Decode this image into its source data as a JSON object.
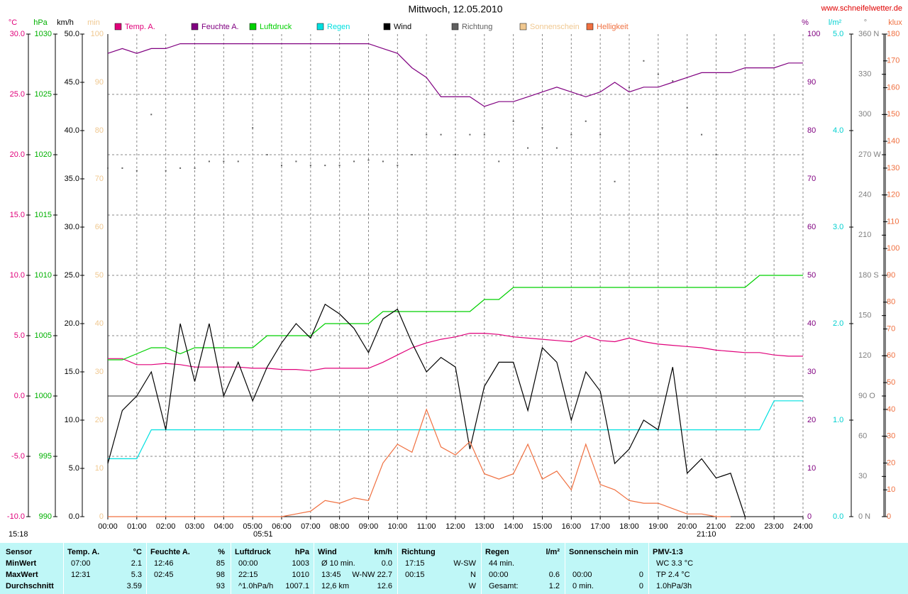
{
  "chart_data": {
    "type": "line",
    "title": "Mittwoch, 12.05.2010",
    "source": "www.schneifelwetter.de",
    "x": [
      0,
      0.5,
      1,
      1.5,
      2,
      2.5,
      3,
      3.5,
      4,
      4.5,
      5,
      5.5,
      6,
      6.5,
      7,
      7.5,
      8,
      8.5,
      9,
      9.5,
      10,
      10.5,
      11,
      11.5,
      12,
      12.5,
      13,
      13.5,
      14,
      14.5,
      15,
      15.5,
      16,
      16.5,
      17,
      17.5,
      18,
      18.5,
      19,
      19.5,
      20,
      20.5,
      21,
      21.5,
      22,
      22.5,
      23,
      23.5,
      24
    ],
    "xlim": [
      0,
      24
    ],
    "xticks": [
      {
        "value": 0,
        "label": "00:00"
      },
      {
        "value": 1,
        "label": "01:00"
      },
      {
        "value": 2,
        "label": "02:00"
      },
      {
        "value": 3,
        "label": "03:00"
      },
      {
        "value": 4,
        "label": "04:00"
      },
      {
        "value": 5,
        "label": "05:00"
      },
      {
        "value": 6,
        "label": "06:00"
      },
      {
        "value": 7,
        "label": "07:00"
      },
      {
        "value": 8,
        "label": "08:00"
      },
      {
        "value": 9,
        "label": "09:00"
      },
      {
        "value": 10,
        "label": "10:00"
      },
      {
        "value": 11,
        "label": "11:00"
      },
      {
        "value": 12,
        "label": "12:00"
      },
      {
        "value": 13,
        "label": "13:00"
      },
      {
        "value": 14,
        "label": "14:00"
      },
      {
        "value": 15,
        "label": "15:00"
      },
      {
        "value": 16,
        "label": "16:00"
      },
      {
        "value": 17,
        "label": "17:00"
      },
      {
        "value": 18,
        "label": "18:00"
      },
      {
        "value": 19,
        "label": "19:00"
      },
      {
        "value": 20,
        "label": "20:00"
      },
      {
        "value": 21,
        "label": "21:00"
      },
      {
        "value": 22,
        "label": "22:00"
      },
      {
        "value": 23,
        "label": "23:00"
      },
      {
        "value": 24,
        "label": "24:00"
      }
    ],
    "grid": true,
    "axes": {
      "temp": {
        "unit": "°C",
        "color": "#e0007a",
        "lim": [
          -10,
          30
        ],
        "ticks": [
          {
            "value": -10,
            "label": "-10.0"
          },
          {
            "value": -5,
            "label": "-5.0"
          },
          {
            "value": 0,
            "label": "0.0"
          },
          {
            "value": 5,
            "label": "5.0"
          },
          {
            "value": 10,
            "label": "10.0"
          },
          {
            "value": 15,
            "label": "15.0"
          },
          {
            "value": 20,
            "label": "20.0"
          },
          {
            "value": 25,
            "label": "25.0"
          },
          {
            "value": 30,
            "label": "30.0"
          }
        ]
      },
      "hpa": {
        "unit": "hPa",
        "color": "#00b000",
        "lim": [
          990,
          1030
        ],
        "ticks": [
          990,
          995,
          1000,
          1005,
          1010,
          1015,
          1020,
          1025,
          1030
        ]
      },
      "wind": {
        "unit": "km/h",
        "color": "#000000",
        "lim": [
          0,
          50
        ],
        "ticks": [
          {
            "value": 0,
            "label": "0.0"
          },
          {
            "value": 5,
            "label": "5.0"
          },
          {
            "value": 10,
            "label": "10.0"
          },
          {
            "value": 15,
            "label": "15.0"
          },
          {
            "value": 20,
            "label": "20.0"
          },
          {
            "value": 25,
            "label": "25.0"
          },
          {
            "value": 30,
            "label": "30.0"
          },
          {
            "value": 35,
            "label": "35.0"
          },
          {
            "value": 40,
            "label": "40.0"
          },
          {
            "value": 45,
            "label": "45.0"
          },
          {
            "value": 50,
            "label": "50.0"
          }
        ]
      },
      "min": {
        "unit": "min",
        "color": "#f0c890",
        "lim": [
          0,
          100
        ],
        "ticks": [
          0,
          10,
          20,
          30,
          40,
          50,
          60,
          70,
          80,
          90,
          100
        ]
      },
      "pct": {
        "unit": "%",
        "color": "#800080",
        "lim": [
          0,
          100
        ],
        "ticks": [
          0,
          10,
          20,
          30,
          40,
          50,
          60,
          70,
          80,
          90,
          100
        ]
      },
      "rain": {
        "unit": "l/m²",
        "color": "#00d0d0",
        "lim": [
          0,
          5
        ],
        "ticks": [
          {
            "value": 0,
            "label": "0.0"
          },
          {
            "value": 1,
            "label": "1.0"
          },
          {
            "value": 2,
            "label": "2.0"
          },
          {
            "value": 3,
            "label": "3.0"
          },
          {
            "value": 4,
            "label": "4.0"
          },
          {
            "value": 5,
            "label": "5.0"
          }
        ]
      },
      "dir": {
        "unit": "°",
        "color": "#808080",
        "lim": [
          0,
          360
        ],
        "ticks": [
          {
            "value": 0,
            "label": "0 N"
          },
          30,
          60,
          {
            "value": 90,
            "label": "90 O"
          },
          120,
          150,
          {
            "value": 180,
            "label": "180 S"
          },
          210,
          240,
          {
            "value": 270,
            "label": "270 W"
          },
          300,
          330,
          {
            "value": 360,
            "label": "360 N"
          }
        ]
      },
      "klux": {
        "unit": "klux",
        "color": "#f07040",
        "lim": [
          0,
          180
        ],
        "ticks": [
          0,
          10,
          20,
          30,
          40,
          50,
          60,
          70,
          80,
          90,
          100,
          110,
          120,
          130,
          140,
          150,
          160,
          170,
          180
        ]
      }
    },
    "series": [
      {
        "name": "Temp. A.",
        "color": "#e0007a",
        "axis": "temp",
        "values": [
          3.1,
          3.1,
          2.6,
          2.6,
          2.7,
          2.6,
          2.4,
          2.4,
          2.4,
          2.4,
          2.3,
          2.3,
          2.2,
          2.2,
          2.1,
          2.3,
          2.3,
          2.3,
          2.3,
          2.8,
          3.4,
          4.0,
          4.4,
          4.7,
          4.9,
          5.2,
          5.2,
          5.1,
          4.9,
          4.8,
          4.7,
          4.6,
          4.5,
          5.0,
          4.6,
          4.5,
          4.8,
          4.5,
          4.3,
          4.2,
          4.1,
          4.0,
          3.8,
          3.7,
          3.6,
          3.6,
          3.4,
          3.3,
          3.3
        ]
      },
      {
        "name": "Feuchte A.",
        "color": "#800080",
        "axis": "pct",
        "values": [
          96,
          97,
          96,
          97,
          97,
          98,
          98,
          98,
          98,
          98,
          98,
          98,
          98,
          98,
          98,
          98,
          98,
          98,
          98,
          97,
          96,
          93,
          91,
          87,
          87,
          87,
          85,
          86,
          86,
          87,
          88,
          89,
          88,
          87,
          88,
          90,
          88,
          89,
          89,
          90,
          91,
          92,
          92,
          92,
          93,
          93,
          93,
          94,
          94
        ]
      },
      {
        "name": "Luftdruck",
        "color": "#00d000",
        "axis": "hpa",
        "values": [
          1003,
          1003,
          1003.5,
          1004,
          1004,
          1003.5,
          1004,
          1004,
          1004,
          1004,
          1004,
          1005,
          1005,
          1005,
          1005,
          1006,
          1006,
          1006,
          1006,
          1007,
          1007,
          1007,
          1007,
          1007,
          1007,
          1007,
          1008,
          1008,
          1009,
          1009,
          1009,
          1009,
          1009,
          1009,
          1009,
          1009,
          1009,
          1009,
          1009,
          1009,
          1009,
          1009,
          1009,
          1009,
          1009,
          1010,
          1010,
          1010,
          1010
        ]
      },
      {
        "name": "Regen",
        "color": "#00e0e0",
        "axis": "rain",
        "values": [
          0.6,
          0.6,
          0.6,
          0.9,
          0.9,
          0.9,
          0.9,
          0.9,
          0.9,
          0.9,
          0.9,
          0.9,
          0.9,
          0.9,
          0.9,
          0.9,
          0.9,
          0.9,
          0.9,
          0.9,
          0.9,
          0.9,
          0.9,
          0.9,
          0.9,
          0.9,
          0.9,
          0.9,
          0.9,
          0.9,
          0.9,
          0.9,
          0.9,
          0.9,
          0.9,
          0.9,
          0.9,
          0.9,
          0.9,
          0.9,
          0.9,
          0.9,
          0.9,
          0.9,
          0.9,
          0.9,
          1.2,
          1.2,
          1.2
        ]
      },
      {
        "name": "Wind",
        "color": "#000000",
        "axis": "wind",
        "values": [
          5.5,
          11,
          12.5,
          15,
          9,
          20,
          14,
          20,
          12.5,
          16,
          12,
          15.5,
          18,
          20,
          18.5,
          22,
          21,
          19.5,
          17,
          20.5,
          21.5,
          18,
          15,
          16.5,
          15.5,
          7,
          13.5,
          16,
          16,
          11,
          17.5,
          16,
          10,
          15,
          13,
          5.5,
          7,
          10,
          9,
          15.5,
          4.5,
          6,
          4,
          4.5,
          0,
          null,
          null,
          null,
          null
        ]
      },
      {
        "name": "Richtung",
        "color": "#606060",
        "axis": "dir",
        "style": "dots",
        "values": [
          260,
          260,
          258,
          300,
          258,
          260,
          260,
          265,
          265,
          265,
          290,
          270,
          262,
          265,
          262,
          262,
          262,
          265,
          266,
          265,
          262,
          270,
          285,
          285,
          270,
          285,
          285,
          265,
          295,
          275,
          290,
          275,
          285,
          295,
          285,
          250,
          320,
          340,
          330,
          325,
          305,
          285,
          270,
          null,
          null,
          null,
          null,
          null,
          null
        ]
      },
      {
        "name": "Sonnenschein",
        "color": "#f0c890",
        "axis": "min"
      },
      {
        "name": "Helligkeit",
        "color": "#f07040",
        "axis": "klux",
        "values": [
          0,
          0,
          0,
          0,
          0,
          0,
          0,
          0,
          0,
          0,
          0,
          0,
          0,
          1,
          2,
          6,
          5,
          7,
          6,
          20,
          27,
          24,
          40,
          26,
          23,
          28,
          16,
          14,
          16,
          27,
          14,
          17,
          10,
          27,
          12,
          10,
          6,
          5,
          5,
          3,
          1,
          1,
          0,
          0,
          null,
          null,
          null,
          null,
          null
        ]
      }
    ],
    "annotations": [
      "15:18",
      "05:51",
      "21:10"
    ]
  },
  "table": {
    "label_header": "Sensor",
    "labels": [
      "MinWert",
      "MaxWert",
      "Durchschnitt"
    ],
    "columns": [
      {
        "title": "Temp. A.",
        "unit": "°C",
        "rows": [
          {
            "l": "07:00",
            "r": "2.1"
          },
          {
            "l": "12:31",
            "r": "5.3"
          },
          {
            "r": "3.59"
          }
        ]
      },
      {
        "title": "Feuchte A.",
        "unit": "%",
        "rows": [
          {
            "l": "12:46",
            "r": "85"
          },
          {
            "l": "02:45",
            "r": "98"
          },
          {
            "r": "93"
          }
        ]
      },
      {
        "title": "Luftdruck",
        "unit": "hPa",
        "rows": [
          {
            "l": "00:00",
            "r": "1003"
          },
          {
            "l": "22:15",
            "r": "1010"
          },
          {
            "l": "^1.0hPa/h",
            "r": "1007.1"
          }
        ]
      },
      {
        "title": "Wind",
        "unit": "km/h",
        "rows": [
          {
            "l": "Ø 10 min.",
            "r": "0.0"
          },
          {
            "l": "13:45",
            "r": "W-NW 22.7"
          },
          {
            "l": "12,6 km",
            "r": "12.6"
          }
        ]
      },
      {
        "title": "Richtung",
        "rows": [
          {
            "l": "17:15",
            "r": "W-SW"
          },
          {
            "l": "00:15",
            "r": "N"
          },
          {
            "r": "W"
          }
        ]
      },
      {
        "title": "Regen",
        "unit": "l/m²",
        "rows": [
          {
            "l": "44 min."
          },
          {
            "l": "00:00",
            "r": "0.6"
          },
          {
            "l": "Gesamt:",
            "r": "1.2"
          }
        ]
      },
      {
        "title": "Sonnenschein min",
        "rows": [
          {},
          {
            "l": "00:00",
            "r": "0"
          },
          {
            "l": "0 min.",
            "r": "0"
          }
        ]
      },
      {
        "title": "PMV-1:3",
        "rows": [
          {
            "l": "WC 3.3 °C"
          },
          {
            "l": "TP 2.4 °C"
          },
          {
            "l": "1.0hPa/3h"
          }
        ]
      }
    ]
  }
}
